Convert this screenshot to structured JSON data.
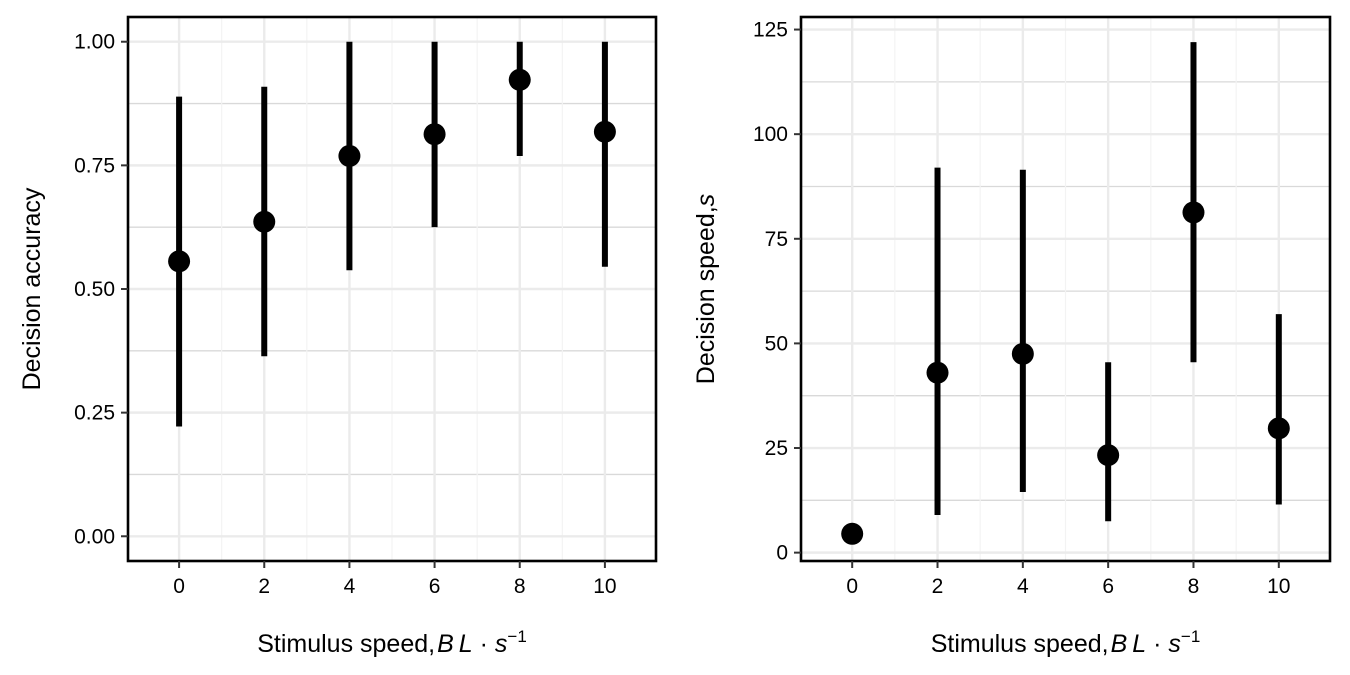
{
  "chart_data": [
    {
      "type": "scatter",
      "xlabel": "Stimulus speed,",
      "xlabel_math": {
        "base": "BL",
        "dot": "·",
        "var": "s",
        "exp": "−1"
      },
      "ylabel": "Decision accuracy",
      "ylabel_math": "",
      "xlim": [
        -1.2,
        11.2
      ],
      "ylim": [
        -0.05,
        1.05
      ],
      "x_ticks": [
        0,
        2,
        4,
        6,
        8,
        10
      ],
      "x_tick_labels": [
        "0",
        "2",
        "4",
        "6",
        "8",
        "10"
      ],
      "y_ticks": [
        0,
        0.25,
        0.5,
        0.75,
        1.0
      ],
      "y_tick_labels": [
        "0.00",
        "0.25",
        "0.50",
        "0.75",
        "1.00"
      ],
      "grid": true,
      "points": [
        {
          "x": 0,
          "y": 0.556,
          "lo": 0.222,
          "hi": 0.889
        },
        {
          "x": 2,
          "y": 0.636,
          "lo": 0.364,
          "hi": 0.909
        },
        {
          "x": 4,
          "y": 0.769,
          "lo": 0.538,
          "hi": 1.0
        },
        {
          "x": 6,
          "y": 0.813,
          "lo": 0.625,
          "hi": 1.0
        },
        {
          "x": 8,
          "y": 0.923,
          "lo": 0.769,
          "hi": 1.0
        },
        {
          "x": 10,
          "y": 0.818,
          "lo": 0.545,
          "hi": 1.0
        }
      ]
    },
    {
      "type": "scatter",
      "xlabel": "Stimulus speed,",
      "xlabel_math": {
        "base": "BL",
        "dot": "·",
        "var": "s",
        "exp": "−1"
      },
      "ylabel": "Decision speed,",
      "ylabel_math": "s",
      "xlim": [
        -1.2,
        11.2
      ],
      "ylim": [
        -2,
        128
      ],
      "x_ticks": [
        0,
        2,
        4,
        6,
        8,
        10
      ],
      "x_tick_labels": [
        "0",
        "2",
        "4",
        "6",
        "8",
        "10"
      ],
      "y_ticks": [
        0,
        25,
        50,
        75,
        100,
        125
      ],
      "y_tick_labels": [
        "0",
        "25",
        "50",
        "75",
        "100",
        "125"
      ],
      "grid": true,
      "points": [
        {
          "x": 0,
          "y": 4.5,
          "lo": 4.5,
          "hi": 4.5
        },
        {
          "x": 2,
          "y": 43,
          "lo": 9,
          "hi": 92
        },
        {
          "x": 4,
          "y": 47.5,
          "lo": 14.5,
          "hi": 91.5
        },
        {
          "x": 6,
          "y": 23.3,
          "lo": 7.5,
          "hi": 45.5
        },
        {
          "x": 8,
          "y": 81.3,
          "lo": 45.5,
          "hi": 122
        },
        {
          "x": 10,
          "y": 29.7,
          "lo": 11.5,
          "hi": 57
        }
      ]
    }
  ],
  "colors": {
    "point": "#000000",
    "errorbar": "#000000",
    "grid_major": "#ebebeb",
    "grid_minor": "#d9d9d9",
    "frame": "#000000"
  }
}
